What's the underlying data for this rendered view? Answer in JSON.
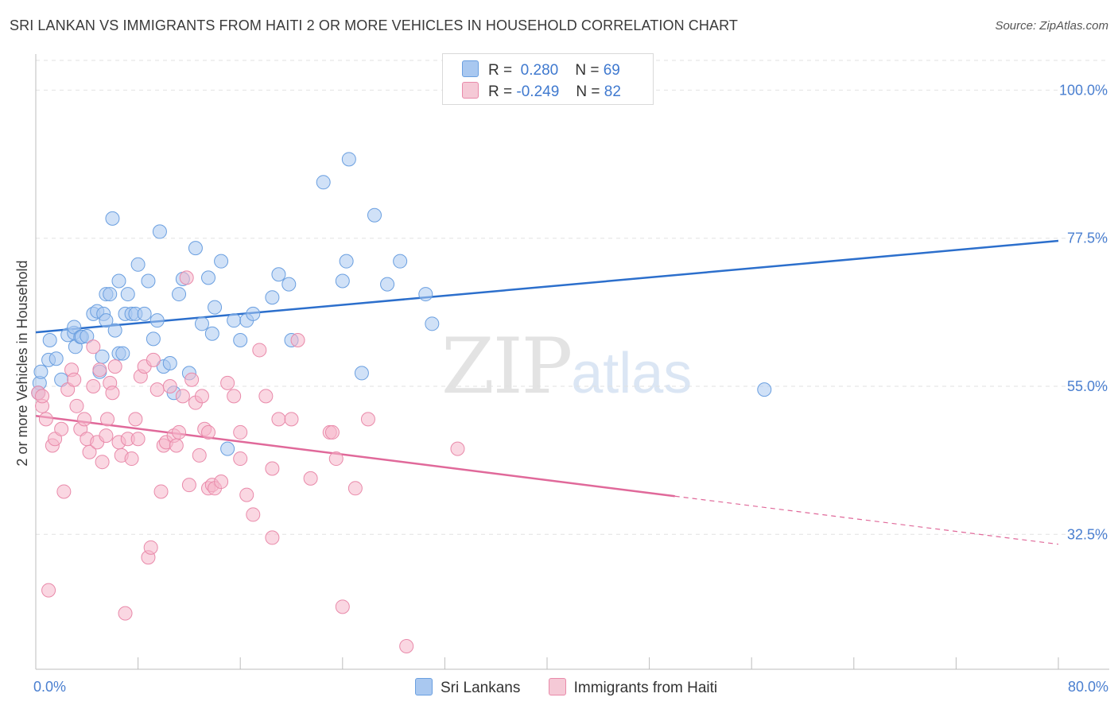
{
  "header": {
    "title": "SRI LANKAN VS IMMIGRANTS FROM HAITI 2 OR MORE VEHICLES IN HOUSEHOLD CORRELATION CHART",
    "source": "Source: ZipAtlas.com"
  },
  "watermark": {
    "zip": "ZIP",
    "atlas": "atlas"
  },
  "legend": {
    "rows": [
      {
        "r_label": "R =",
        "r_value": "0.280",
        "n_label": "N =",
        "n_value": "69",
        "color": "#a9c8f0"
      },
      {
        "r_label": "R =",
        "r_value": "-0.249",
        "n_label": "N =",
        "n_value": "82",
        "color": "#f5b7ca"
      }
    ]
  },
  "bottom_legend": {
    "series_a": "Sri Lankans",
    "series_b": "Immigrants from Haiti"
  },
  "colors": {
    "blue_fill": "#a9c8f0",
    "blue_stroke": "#6a9fe0",
    "blue_line": "#2c6fcc",
    "pink_fill": "#f5b7ca",
    "pink_stroke": "#e98aaa",
    "pink_line": "#e0699a",
    "grid": "#e2e2e2",
    "tick_label": "#4a7fd0"
  },
  "chart_data": {
    "type": "scatter",
    "title": "SRI LANKAN VS IMMIGRANTS FROM HAITI 2 OR MORE VEHICLES IN HOUSEHOLD CORRELATION CHART",
    "xlabel": "",
    "ylabel": "2 or more Vehicles in Household",
    "xlim": [
      0,
      80
    ],
    "ylim": [
      12,
      105
    ],
    "x_tick_labels": [
      "0.0%",
      "80.0%"
    ],
    "y_ticks": [
      32.5,
      55.0,
      77.5,
      100.0
    ],
    "y_tick_labels": [
      "32.5%",
      "55.0%",
      "77.5%",
      "100.0%"
    ],
    "grid": true,
    "legend_position": "top-center",
    "series": [
      {
        "name": "Sri Lankans",
        "trend": {
          "x": [
            0,
            80
          ],
          "y": [
            63.2,
            77.1
          ]
        },
        "points": [
          [
            0.3,
            55.5
          ],
          [
            0.4,
            57.2
          ],
          [
            1.0,
            59.0
          ],
          [
            1.1,
            62.0
          ],
          [
            1.6,
            59.2
          ],
          [
            2.0,
            56.0
          ],
          [
            2.5,
            62.8
          ],
          [
            3.0,
            63.1
          ],
          [
            3.0,
            64.0
          ],
          [
            3.1,
            61.0
          ],
          [
            3.5,
            62.5
          ],
          [
            3.6,
            62.5
          ],
          [
            4.0,
            62.6
          ],
          [
            4.5,
            66.0
          ],
          [
            4.8,
            66.4
          ],
          [
            5.0,
            57.2
          ],
          [
            5.2,
            59.5
          ],
          [
            5.3,
            66.0
          ],
          [
            5.5,
            65.0
          ],
          [
            5.5,
            69.0
          ],
          [
            5.8,
            69.0
          ],
          [
            6.0,
            80.5
          ],
          [
            6.2,
            63.5
          ],
          [
            6.5,
            71.0
          ],
          [
            6.5,
            60.0
          ],
          [
            6.8,
            60.0
          ],
          [
            7.0,
            66.0
          ],
          [
            7.2,
            69.0
          ],
          [
            7.5,
            66.0
          ],
          [
            7.8,
            66.0
          ],
          [
            8.0,
            73.5
          ],
          [
            8.5,
            66.0
          ],
          [
            8.8,
            71.0
          ],
          [
            9.2,
            62.2
          ],
          [
            9.5,
            65.0
          ],
          [
            9.7,
            78.5
          ],
          [
            10.0,
            58.0
          ],
          [
            10.5,
            58.5
          ],
          [
            10.8,
            54.0
          ],
          [
            11.2,
            69.0
          ],
          [
            11.5,
            71.3
          ],
          [
            12.0,
            57.0
          ],
          [
            12.5,
            76.0
          ],
          [
            13.0,
            64.5
          ],
          [
            13.5,
            71.5
          ],
          [
            13.8,
            63.0
          ],
          [
            14.0,
            67.0
          ],
          [
            14.5,
            74.0
          ],
          [
            15.0,
            45.5
          ],
          [
            15.5,
            65.0
          ],
          [
            16.0,
            62.0
          ],
          [
            16.5,
            65.0
          ],
          [
            17.0,
            66.0
          ],
          [
            18.5,
            68.5
          ],
          [
            19.0,
            72.0
          ],
          [
            19.8,
            70.5
          ],
          [
            20.0,
            62.0
          ],
          [
            22.5,
            86.0
          ],
          [
            24.0,
            71.0
          ],
          [
            24.3,
            74.0
          ],
          [
            24.5,
            89.5
          ],
          [
            25.5,
            57.0
          ],
          [
            26.5,
            81.0
          ],
          [
            27.5,
            70.5
          ],
          [
            28.5,
            74.0
          ],
          [
            30.5,
            69.0
          ],
          [
            31.0,
            64.5
          ],
          [
            57.0,
            54.5
          ],
          [
            0.2,
            54.0
          ]
        ]
      },
      {
        "name": "Immigrants from Haiti",
        "trend": {
          "x": [
            0,
            50
          ],
          "y": [
            50.5,
            38.3
          ]
        },
        "trend_dashed": {
          "x": [
            50,
            80
          ],
          "y": [
            38.3,
            31.0
          ]
        },
        "points": [
          [
            0.2,
            54.0
          ],
          [
            0.5,
            52.0
          ],
          [
            0.5,
            53.5
          ],
          [
            0.8,
            50.0
          ],
          [
            1.0,
            24.0
          ],
          [
            1.3,
            46.0
          ],
          [
            1.5,
            47.0
          ],
          [
            2.0,
            48.5
          ],
          [
            2.2,
            39.0
          ],
          [
            2.5,
            54.5
          ],
          [
            2.8,
            57.5
          ],
          [
            3.0,
            56.0
          ],
          [
            3.2,
            52.0
          ],
          [
            3.5,
            48.5
          ],
          [
            3.8,
            50.0
          ],
          [
            4.0,
            47.0
          ],
          [
            4.2,
            45.0
          ],
          [
            4.5,
            55.0
          ],
          [
            4.5,
            61.0
          ],
          [
            4.8,
            46.5
          ],
          [
            5.0,
            57.5
          ],
          [
            5.2,
            43.5
          ],
          [
            5.5,
            47.5
          ],
          [
            5.6,
            50.0
          ],
          [
            5.8,
            55.5
          ],
          [
            6.0,
            54.0
          ],
          [
            6.2,
            58.0
          ],
          [
            6.5,
            46.5
          ],
          [
            6.7,
            44.5
          ],
          [
            7.0,
            20.5
          ],
          [
            7.2,
            47.0
          ],
          [
            7.5,
            44.0
          ],
          [
            7.8,
            50.0
          ],
          [
            8.0,
            47.0
          ],
          [
            8.2,
            56.5
          ],
          [
            8.5,
            58.0
          ],
          [
            8.8,
            29.0
          ],
          [
            9.0,
            30.5
          ],
          [
            9.2,
            59.0
          ],
          [
            9.5,
            54.5
          ],
          [
            9.8,
            39.0
          ],
          [
            10.0,
            46.0
          ],
          [
            10.2,
            46.5
          ],
          [
            10.5,
            55.0
          ],
          [
            10.8,
            47.5
          ],
          [
            11.0,
            46.0
          ],
          [
            11.2,
            48.0
          ],
          [
            11.5,
            53.5
          ],
          [
            11.8,
            71.5
          ],
          [
            12.0,
            40.0
          ],
          [
            12.2,
            56.0
          ],
          [
            12.5,
            52.5
          ],
          [
            12.8,
            44.5
          ],
          [
            13.0,
            53.5
          ],
          [
            13.2,
            48.5
          ],
          [
            13.5,
            39.5
          ],
          [
            13.8,
            40.0
          ],
          [
            14.0,
            39.5
          ],
          [
            14.5,
            40.5
          ],
          [
            15.0,
            55.5
          ],
          [
            15.5,
            53.5
          ],
          [
            16.0,
            48.0
          ],
          [
            16.5,
            38.5
          ],
          [
            17.0,
            35.5
          ],
          [
            17.5,
            60.5
          ],
          [
            18.0,
            53.5
          ],
          [
            18.5,
            42.5
          ],
          [
            18.5,
            32.0
          ],
          [
            19.0,
            50.0
          ],
          [
            20.5,
            62.0
          ],
          [
            20.0,
            50.0
          ],
          [
            21.5,
            41.0
          ],
          [
            23.0,
            48.0
          ],
          [
            23.2,
            48.0
          ],
          [
            23.5,
            44.0
          ],
          [
            24.0,
            21.5
          ],
          [
            25.0,
            39.5
          ],
          [
            26.0,
            50.0
          ],
          [
            29.0,
            15.5
          ],
          [
            33.0,
            45.5
          ],
          [
            13.5,
            48.0
          ],
          [
            16.0,
            44.0
          ]
        ]
      }
    ]
  }
}
